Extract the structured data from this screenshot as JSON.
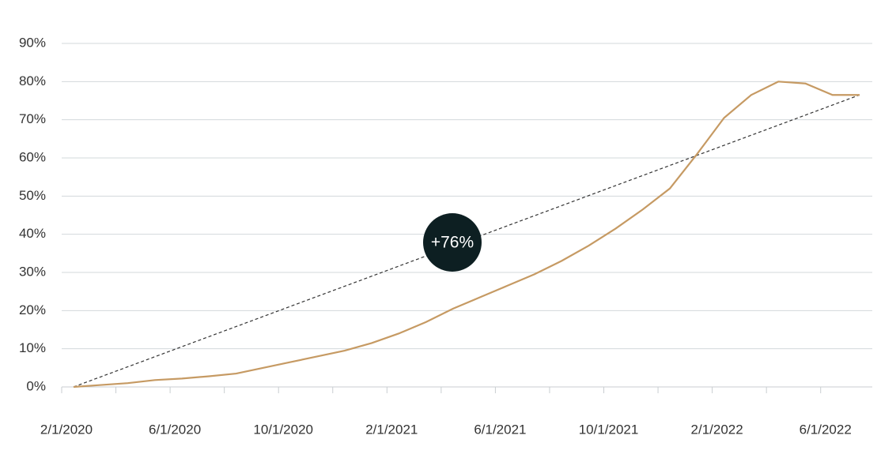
{
  "chart_data": {
    "type": "line",
    "categories": [
      "2/1/2020",
      null,
      null,
      null,
      "6/1/2020",
      null,
      null,
      null,
      "10/1/2020",
      null,
      null,
      null,
      "2/1/2021",
      null,
      null,
      null,
      "6/1/2021",
      null,
      null,
      null,
      "10/1/2021",
      null,
      null,
      null,
      "2/1/2022",
      null,
      null,
      null,
      "6/1/2022",
      null
    ],
    "values": [
      0,
      0.5,
      1,
      1.8,
      2.2,
      2.8,
      3.5,
      5,
      6.5,
      8,
      9.5,
      11.5,
      14,
      17,
      20.5,
      23.5,
      26.5,
      29.5,
      33,
      37,
      41.5,
      46.5,
      52,
      61,
      70.5,
      76.5,
      80,
      79.5,
      76.5,
      76.5
    ],
    "color": "#c69a63",
    "annotation": "+76%",
    "ylim": [
      0,
      90
    ],
    "yticks": [
      {
        "value": 0,
        "label": "0%"
      },
      {
        "value": 10,
        "label": "10%"
      },
      {
        "value": 20,
        "label": "20%"
      },
      {
        "value": 30,
        "label": "30%"
      },
      {
        "value": 40,
        "label": "40%"
      },
      {
        "value": 50,
        "label": "50%"
      },
      {
        "value": 60,
        "label": "60%"
      },
      {
        "value": 70,
        "label": "70%"
      },
      {
        "value": 80,
        "label": "80%"
      },
      {
        "value": 90,
        "label": "90%"
      }
    ],
    "grid": true
  }
}
